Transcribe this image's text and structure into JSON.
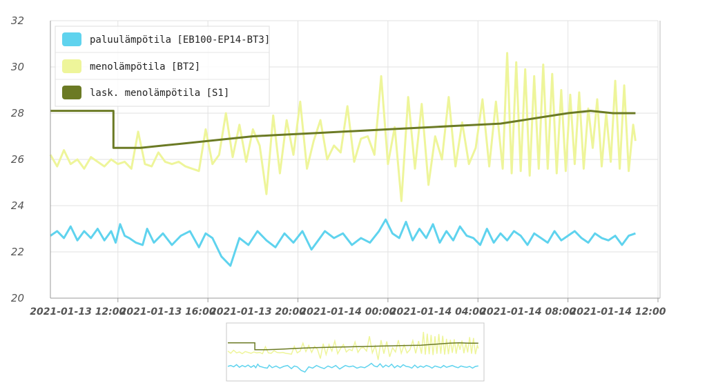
{
  "chart_data": {
    "type": "line",
    "title": "",
    "xlabel": "",
    "ylabel": "",
    "ylim": [
      20,
      32
    ],
    "yticks": [
      "20",
      "22",
      "24",
      "26",
      "28",
      "30",
      "32"
    ],
    "xlim": [
      9.0,
      36.0
    ],
    "xticks": [
      {
        "x": 12,
        "label": "2021-01-13 12:00"
      },
      {
        "x": 16,
        "label": "2021-01-13 16:00"
      },
      {
        "x": 20,
        "label": "2021-01-13 20:00"
      },
      {
        "x": 24,
        "label": "2021-01-14 00:00"
      },
      {
        "x": 28,
        "label": "2021-01-14 04:00"
      },
      {
        "x": 32,
        "label": "2021-01-14 08:00"
      },
      {
        "x": 36,
        "label": "2021-01-14 12:00"
      }
    ],
    "x_units": "hours since 2021-01-13 00:00",
    "legend_position": "top-left",
    "grid": true,
    "series": [
      {
        "name": "paluulämpötila [EB100-EP14-BT3]",
        "color": "#5fd3ee",
        "x": [
          9.0,
          9.3,
          9.6,
          9.9,
          10.2,
          10.5,
          10.8,
          11.1,
          11.4,
          11.7,
          11.9,
          12.1,
          12.3,
          12.5,
          12.8,
          13.1,
          13.3,
          13.6,
          14.0,
          14.4,
          14.8,
          15.2,
          15.6,
          15.9,
          16.2,
          16.6,
          17.0,
          17.4,
          17.8,
          18.2,
          18.6,
          19.0,
          19.4,
          19.8,
          20.2,
          20.6,
          20.9,
          21.2,
          21.6,
          22.0,
          22.4,
          22.8,
          23.2,
          23.6,
          23.9,
          24.2,
          24.5,
          24.8,
          25.1,
          25.4,
          25.7,
          26.0,
          26.3,
          26.6,
          26.9,
          27.2,
          27.5,
          27.8,
          28.1,
          28.4,
          28.7,
          29.0,
          29.3,
          29.6,
          29.9,
          30.2,
          30.5,
          30.8,
          31.1,
          31.4,
          31.7,
          32.0,
          32.3,
          32.6,
          32.9,
          33.2,
          33.5,
          33.8,
          34.1,
          34.4,
          34.7,
          35.0
        ],
        "values": [
          22.7,
          22.9,
          22.6,
          23.1,
          22.5,
          22.9,
          22.6,
          23.0,
          22.5,
          22.9,
          22.4,
          23.2,
          22.7,
          22.6,
          22.4,
          22.3,
          23.0,
          22.4,
          22.8,
          22.3,
          22.7,
          22.9,
          22.2,
          22.8,
          22.6,
          21.8,
          21.4,
          22.6,
          22.3,
          22.9,
          22.5,
          22.2,
          22.8,
          22.4,
          22.9,
          22.1,
          22.5,
          22.9,
          22.6,
          22.8,
          22.3,
          22.6,
          22.4,
          22.9,
          23.4,
          22.8,
          22.6,
          23.3,
          22.5,
          23.0,
          22.6,
          23.2,
          22.4,
          22.9,
          22.5,
          23.1,
          22.7,
          22.6,
          22.3,
          23.0,
          22.4,
          22.8,
          22.5,
          22.9,
          22.7,
          22.3,
          22.8,
          22.6,
          22.4,
          22.9,
          22.5,
          22.7,
          22.9,
          22.6,
          22.4,
          22.8,
          22.6,
          22.5,
          22.7,
          22.3,
          22.7,
          22.8
        ]
      },
      {
        "name": "menolämpötila [BT2]",
        "color": "#eef59a",
        "x": [
          9.0,
          9.3,
          9.6,
          9.9,
          10.2,
          10.5,
          10.8,
          11.1,
          11.4,
          11.7,
          12.0,
          12.3,
          12.6,
          12.9,
          13.2,
          13.5,
          13.8,
          14.1,
          14.4,
          14.7,
          15.0,
          15.3,
          15.6,
          15.9,
          16.2,
          16.5,
          16.8,
          17.1,
          17.4,
          17.7,
          18.0,
          18.3,
          18.6,
          18.9,
          19.2,
          19.5,
          19.8,
          20.1,
          20.4,
          20.7,
          21.0,
          21.3,
          21.6,
          21.9,
          22.2,
          22.5,
          22.8,
          23.1,
          23.4,
          23.7,
          24.0,
          24.3,
          24.6,
          24.9,
          25.2,
          25.5,
          25.8,
          26.1,
          26.4,
          26.7,
          27.0,
          27.3,
          27.6,
          27.9,
          28.2,
          28.5,
          28.8,
          29.1,
          29.3,
          29.5,
          29.7,
          29.9,
          30.1,
          30.3,
          30.5,
          30.7,
          30.9,
          31.1,
          31.3,
          31.5,
          31.7,
          31.9,
          32.1,
          32.3,
          32.5,
          32.7,
          32.9,
          33.1,
          33.3,
          33.5,
          33.7,
          33.9,
          34.1,
          34.3,
          34.5,
          34.7,
          34.9,
          35.0
        ],
        "values": [
          26.2,
          25.7,
          26.4,
          25.8,
          26.0,
          25.6,
          26.1,
          25.9,
          25.7,
          26.0,
          25.8,
          25.9,
          25.6,
          27.2,
          25.8,
          25.7,
          26.3,
          25.9,
          25.8,
          25.9,
          25.7,
          25.6,
          25.5,
          27.3,
          25.8,
          26.2,
          28.0,
          26.1,
          27.5,
          25.9,
          27.3,
          26.6,
          24.5,
          27.9,
          25.4,
          27.7,
          26.2,
          28.5,
          25.6,
          26.8,
          27.7,
          26.0,
          26.6,
          26.3,
          28.3,
          25.9,
          26.9,
          27.0,
          26.2,
          29.6,
          25.8,
          27.4,
          24.2,
          28.7,
          25.6,
          28.4,
          24.9,
          27.0,
          26.0,
          28.7,
          25.7,
          27.6,
          25.8,
          26.5,
          28.6,
          25.7,
          28.5,
          25.6,
          30.6,
          25.4,
          30.2,
          25.5,
          29.9,
          25.3,
          29.6,
          25.6,
          30.1,
          25.6,
          29.7,
          25.4,
          29.0,
          25.5,
          28.8,
          25.8,
          28.9,
          25.6,
          28.2,
          26.5,
          28.6,
          25.7,
          28.0,
          25.9,
          29.4,
          25.6,
          29.2,
          25.5,
          27.5,
          26.8
        ]
      },
      {
        "name": "lask. menolämpötila [S1]",
        "color": "#6b7a24",
        "x": [
          9.0,
          11.8,
          11.8,
          12.0,
          13.0,
          14.0,
          15.0,
          16.0,
          17.0,
          18.0,
          19.0,
          20.0,
          21.0,
          22.0,
          23.0,
          24.0,
          25.0,
          26.0,
          27.0,
          28.0,
          29.0,
          30.0,
          31.0,
          32.0,
          33.0,
          34.0,
          35.0
        ],
        "values": [
          28.1,
          28.1,
          26.5,
          26.5,
          26.5,
          26.6,
          26.7,
          26.8,
          26.9,
          27.0,
          27.05,
          27.1,
          27.15,
          27.2,
          27.25,
          27.3,
          27.35,
          27.4,
          27.45,
          27.5,
          27.55,
          27.7,
          27.85,
          28.0,
          28.1,
          28.0,
          28.0
        ]
      }
    ]
  }
}
